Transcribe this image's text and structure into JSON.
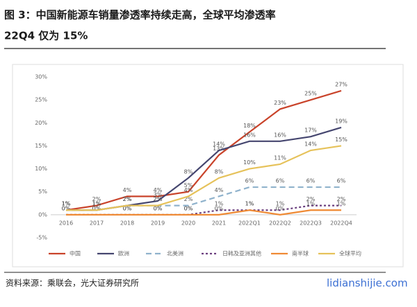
{
  "header": {
    "title_lines": [
      "图 3：中国新能源车销量渗透率持续走高，全球平均渗透率",
      "22Q4 仅为 15%"
    ]
  },
  "chart_data": {
    "type": "line",
    "categories": [
      "2016",
      "2017",
      "2018",
      "2019",
      "2020",
      "2021",
      "2022Q1",
      "2022Q2",
      "2022Q3",
      "2022Q4"
    ],
    "ylim": [
      -5,
      30
    ],
    "yticks": [
      {
        "value": -5,
        "label": "-5%"
      },
      {
        "value": 0,
        "label": "0%"
      },
      {
        "value": 5,
        "label": "5%"
      },
      {
        "value": 10,
        "label": "10%"
      },
      {
        "value": 15,
        "label": "15%"
      },
      {
        "value": 20,
        "label": "20%"
      },
      {
        "value": 25,
        "label": "25%"
      },
      {
        "value": 30,
        "label": "30%"
      }
    ],
    "legend": "bottom",
    "series": [
      {
        "name": "中国",
        "color": "#c9432a",
        "dash": "solid",
        "values": [
          1,
          2,
          4,
          4,
          5,
          13,
          18,
          23,
          25,
          27
        ],
        "value_labels": [
          "1%",
          "2%",
          "4%",
          "4%",
          "5%",
          "13%",
          "18%",
          "23%",
          "25%",
          "27%"
        ]
      },
      {
        "name": "欧洲",
        "color": "#45466f",
        "dash": "solid",
        "values": [
          1,
          1,
          2,
          3,
          8,
          14,
          16,
          16,
          17,
          19
        ],
        "value_labels": [
          "1%",
          "1%",
          "2%",
          "3%",
          "8%",
          "14%",
          "16%",
          "16%",
          "17%",
          "19%"
        ]
      },
      {
        "name": "北美洲",
        "color": "#8fb2cc",
        "dash": "long",
        "values": [
          1,
          1,
          2,
          2,
          2,
          4,
          6,
          6,
          6,
          6
        ],
        "value_labels": [
          "1%",
          "1%",
          "2%",
          "2%",
          "2%",
          "4%",
          "6%",
          "6%",
          "6%",
          "6%"
        ]
      },
      {
        "name": "日韩及亚洲其他",
        "color": "#6b3f7f",
        "dash": "short",
        "values": [
          0,
          0,
          0,
          0,
          0,
          1,
          1,
          1,
          2,
          2
        ],
        "value_labels": [
          "0%",
          "0%",
          "0%",
          "0%",
          "0%",
          "1%",
          "1%",
          "1%",
          "2%",
          "2%"
        ]
      },
      {
        "name": "南半球",
        "color": "#ef8a34",
        "dash": "solid",
        "values": [
          0,
          0,
          0,
          0,
          0,
          0,
          1,
          0,
          1,
          1
        ],
        "value_labels": [
          "0%",
          "0%",
          "0%",
          "0%",
          "0%",
          "0%",
          "1%",
          "0%",
          "1%",
          "1%"
        ]
      },
      {
        "name": "全球平均",
        "color": "#e6c25a",
        "dash": "solid",
        "values": [
          1,
          1,
          2,
          2,
          4,
          8,
          10,
          11,
          14,
          15
        ],
        "value_labels": [
          "1%",
          "1%",
          "2%",
          "2%",
          "4%",
          "8%",
          "10%",
          "11%",
          "14%",
          "15%"
        ]
      }
    ]
  },
  "footer": {
    "source": "资料来源：乘联会，光大证券研究所",
    "watermark": "lidianshijie.com"
  }
}
